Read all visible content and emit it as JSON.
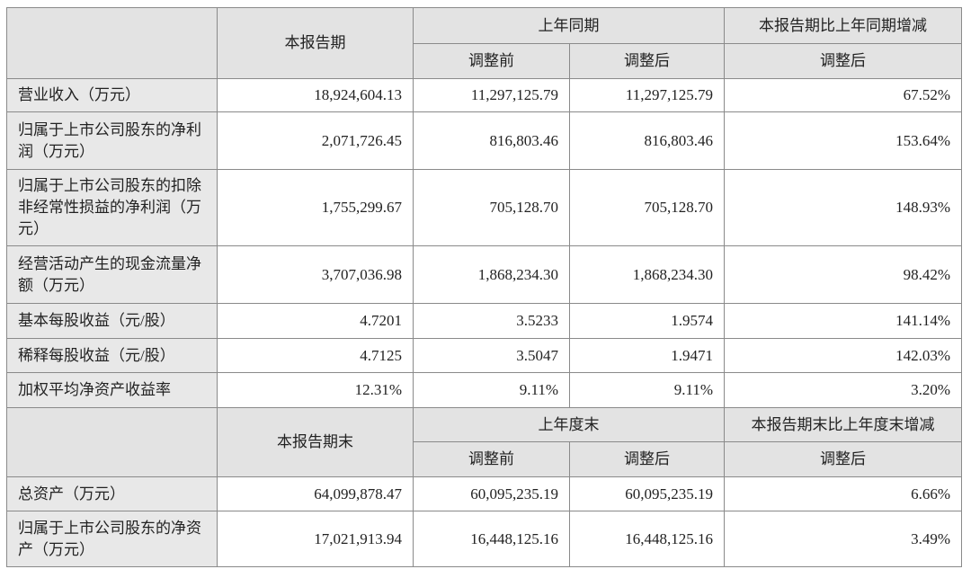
{
  "header1": {
    "current": "本报告期",
    "prior": "上年同期",
    "change": "本报告期比上年同期增减",
    "before": "调整前",
    "after": "调整后",
    "change_after": "调整后"
  },
  "rows1": [
    {
      "label": "营业收入（万元）",
      "current": "18,924,604.13",
      "before": "11,297,125.79",
      "after": "11,297,125.79",
      "change": "67.52%"
    },
    {
      "label": "归属于上市公司股东的净利润（万元）",
      "current": "2,071,726.45",
      "before": "816,803.46",
      "after": "816,803.46",
      "change": "153.64%"
    },
    {
      "label": "归属于上市公司股东的扣除非经常性损益的净利润（万元）",
      "current": "1,755,299.67",
      "before": "705,128.70",
      "after": "705,128.70",
      "change": "148.93%"
    },
    {
      "label": "经营活动产生的现金流量净额（万元）",
      "current": "3,707,036.98",
      "before": "1,868,234.30",
      "after": "1,868,234.30",
      "change": "98.42%"
    },
    {
      "label": "基本每股收益（元/股）",
      "current": "4.7201",
      "before": "3.5233",
      "after": "1.9574",
      "change": "141.14%"
    },
    {
      "label": "稀释每股收益（元/股）",
      "current": "4.7125",
      "before": "3.5047",
      "after": "1.9471",
      "change": "142.03%"
    },
    {
      "label": "加权平均净资产收益率",
      "current": "12.31%",
      "before": "9.11%",
      "after": "9.11%",
      "change": "3.20%"
    }
  ],
  "header2": {
    "current": "本报告期末",
    "prior": "上年度末",
    "change": "本报告期末比上年度末增减",
    "before": "调整前",
    "after": "调整后",
    "change_after": "调整后"
  },
  "rows2": [
    {
      "label": "总资产（万元）",
      "current": "64,099,878.47",
      "before": "60,095,235.19",
      "after": "60,095,235.19",
      "change": "6.66%"
    },
    {
      "label": "归属于上市公司股东的净资产（万元）",
      "current": "17,021,913.94",
      "before": "16,448,125.16",
      "after": "16,448,125.16",
      "change": "3.49%"
    }
  ]
}
